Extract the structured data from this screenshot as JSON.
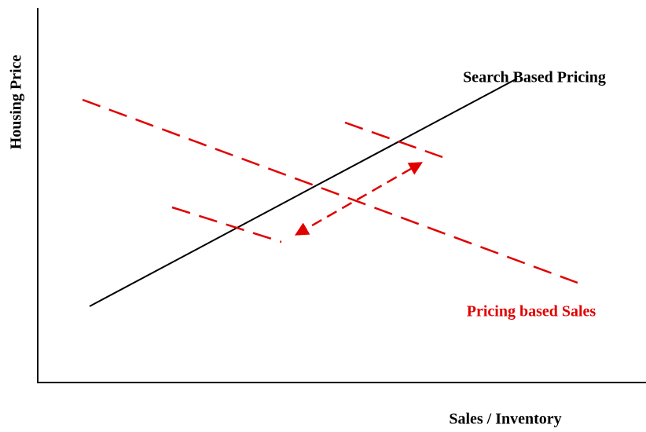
{
  "labels": {
    "y_axis": "Housing Price",
    "x_axis": "Sales / Inventory",
    "black_line": "Search Based Pricing",
    "red_line": "Pricing based Sales"
  }
}
